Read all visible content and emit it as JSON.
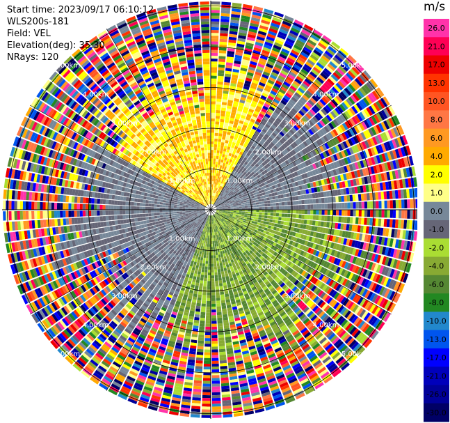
{
  "header": {
    "start_time": "Start time: 2023/09/17 06:10:12",
    "instrument": "WLS200s-181",
    "field": "Field: VEL",
    "elevation": "Elevation(deg): 35.30",
    "nrays": "NRays: 120"
  },
  "colorbar": {
    "units": "m/s",
    "tick_labels": [
      "26.0",
      "21.0",
      "17.0",
      "13.0",
      "10.0",
      "8.0",
      "6.0",
      "4.0",
      "2.0",
      "1.0",
      "0.0",
      "-1.0",
      "-2.0",
      "-4.0",
      "-6.0",
      "-8.0",
      "-10.0",
      "-13.0",
      "-17.0",
      "-21.0",
      "-26.0",
      "-30.0"
    ],
    "colors": [
      "#ff33aa",
      "#ff0055",
      "#ee0000",
      "#ff3300",
      "#ff5522",
      "#ff7744",
      "#ff9922",
      "#ffaa00",
      "#ffff00",
      "#ffff88",
      "#778899",
      "#666677",
      "#aadd33",
      "#88aa33",
      "#558833",
      "#228822",
      "#2288cc",
      "#0055ee",
      "#0000ff",
      "#0000bb",
      "#000099",
      "#000066"
    ]
  },
  "chart_data": {
    "type": "heatmap",
    "title": "",
    "field": "VEL",
    "units": "m/s",
    "vmin": -30.0,
    "vmax": 26.0,
    "nrays": 120,
    "elevation_deg": 35.3,
    "range_ring_labels": [
      "1.00km",
      "2.00km",
      "3.00km",
      "4.00km",
      "5.00km"
    ],
    "range_rings_km": [
      1,
      2,
      3,
      4,
      5
    ],
    "spokes_deg": [
      0,
      30,
      60,
      90,
      120,
      150,
      180,
      210,
      240,
      270,
      300,
      330
    ],
    "max_range_km": 5.6,
    "sectors": [
      {
        "azimuth_deg": [
          -60,
          30
        ],
        "description": "positive",
        "approx_velocity_ms": [
          1.0,
          6.0
        ]
      },
      {
        "azimuth_deg": [
          30,
          90
        ],
        "description": "near-zero",
        "approx_velocity_ms": [
          -1.0,
          1.0
        ]
      },
      {
        "azimuth_deg": [
          90,
          200
        ],
        "description": "negative",
        "approx_velocity_ms": [
          -6.0,
          -1.0
        ]
      },
      {
        "azimuth_deg": [
          200,
          300
        ],
        "description": "near-zero",
        "approx_velocity_ms": [
          -1.0,
          1.0
        ]
      }
    ],
    "coherent_region_max_km": [
      2.2,
      3.7
    ],
    "outer_region": "noise"
  }
}
